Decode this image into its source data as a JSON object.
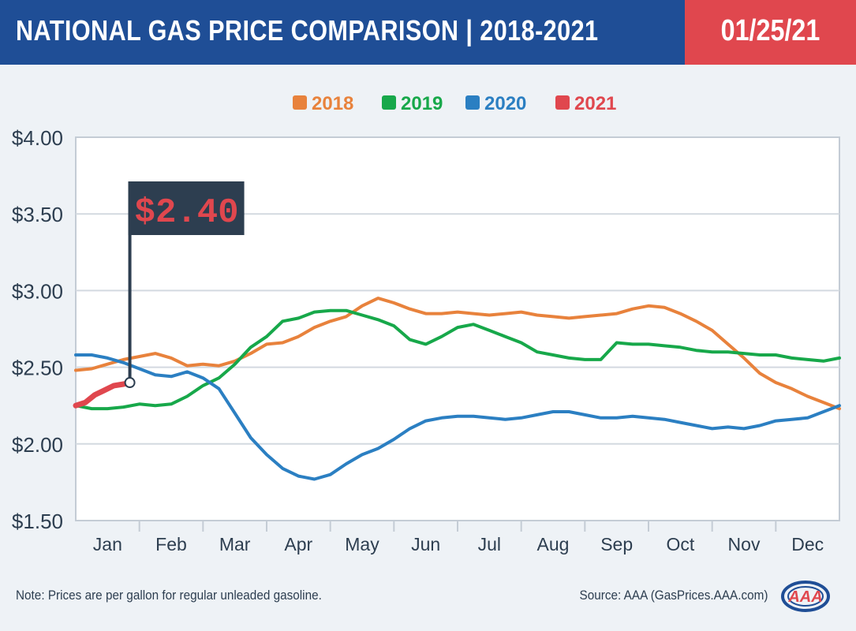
{
  "header": {
    "title": "NATIONAL GAS PRICE COMPARISON | 2018-2021",
    "date": "01/25/21"
  },
  "footer": {
    "note": "Note: Prices are per gallon for regular unleaded gasoline.",
    "source": "Source: AAA (GasPrices.AAA.com)",
    "logo_text": "AAA"
  },
  "colors": {
    "title_bg": "#1f4e96",
    "date_bg": "#e0474e",
    "2018": "#e8823c",
    "2019": "#17a84a",
    "2020": "#2b7fc2",
    "2021": "#e0474e",
    "flag_bg": "#2d3e50",
    "flag_text": "#e0474e"
  },
  "chart_data": {
    "type": "line",
    "title": "NATIONAL GAS PRICE COMPARISON | 2018-2021",
    "xlabel": "",
    "ylabel": "",
    "categories": [
      "Jan",
      "Feb",
      "Mar",
      "Apr",
      "May",
      "Jun",
      "Jul",
      "Aug",
      "Sep",
      "Oct",
      "Nov",
      "Dec"
    ],
    "x_range": [
      0,
      12
    ],
    "ylim": [
      1.5,
      4.0
    ],
    "yticks": [
      "$4.00",
      "$3.50",
      "$3.00",
      "$2.50",
      "$2.00",
      "$1.50"
    ],
    "ytick_values": [
      4.0,
      3.5,
      3.0,
      2.5,
      2.0,
      1.5
    ],
    "grid": true,
    "legend_position": "top-center",
    "annotation": {
      "label": "$2.40",
      "x": 0.85,
      "y": 2.4,
      "series": "2021"
    },
    "series": [
      {
        "name": "2018",
        "color": "#e8823c",
        "x": [
          0,
          0.25,
          0.5,
          0.75,
          1,
          1.25,
          1.5,
          1.75,
          2,
          2.25,
          2.5,
          2.75,
          3,
          3.25,
          3.5,
          3.75,
          4,
          4.25,
          4.5,
          4.75,
          5,
          5.25,
          5.5,
          5.75,
          6,
          6.25,
          6.5,
          6.75,
          7,
          7.25,
          7.5,
          7.75,
          8,
          8.25,
          8.5,
          8.75,
          9,
          9.25,
          9.5,
          9.75,
          10,
          10.25,
          10.5,
          10.75,
          11,
          11.25,
          11.5,
          11.75,
          12
        ],
        "y": [
          2.48,
          2.49,
          2.52,
          2.55,
          2.57,
          2.59,
          2.56,
          2.51,
          2.52,
          2.51,
          2.54,
          2.59,
          2.65,
          2.66,
          2.7,
          2.76,
          2.8,
          2.83,
          2.9,
          2.95,
          2.92,
          2.88,
          2.85,
          2.85,
          2.86,
          2.85,
          2.84,
          2.85,
          2.86,
          2.84,
          2.83,
          2.82,
          2.83,
          2.84,
          2.85,
          2.88,
          2.9,
          2.89,
          2.85,
          2.8,
          2.74,
          2.65,
          2.56,
          2.46,
          2.4,
          2.36,
          2.31,
          2.27,
          2.23
        ]
      },
      {
        "name": "2019",
        "color": "#17a84a",
        "x": [
          0,
          0.25,
          0.5,
          0.75,
          1,
          1.25,
          1.5,
          1.75,
          2,
          2.25,
          2.5,
          2.75,
          3,
          3.25,
          3.5,
          3.75,
          4,
          4.25,
          4.5,
          4.75,
          5,
          5.25,
          5.5,
          5.75,
          6,
          6.25,
          6.5,
          6.75,
          7,
          7.25,
          7.5,
          7.75,
          8,
          8.25,
          8.5,
          8.75,
          9,
          9.25,
          9.5,
          9.75,
          10,
          10.25,
          10.5,
          10.75,
          11,
          11.25,
          11.5,
          11.75,
          12
        ],
        "y": [
          2.25,
          2.23,
          2.23,
          2.24,
          2.26,
          2.25,
          2.26,
          2.31,
          2.38,
          2.43,
          2.52,
          2.63,
          2.7,
          2.8,
          2.82,
          2.86,
          2.87,
          2.87,
          2.84,
          2.81,
          2.77,
          2.68,
          2.65,
          2.7,
          2.76,
          2.78,
          2.74,
          2.7,
          2.66,
          2.6,
          2.58,
          2.56,
          2.55,
          2.55,
          2.66,
          2.65,
          2.65,
          2.64,
          2.63,
          2.61,
          2.6,
          2.6,
          2.59,
          2.58,
          2.58,
          2.56,
          2.55,
          2.54,
          2.56
        ]
      },
      {
        "name": "2020",
        "color": "#2b7fc2",
        "x": [
          0,
          0.25,
          0.5,
          0.75,
          1,
          1.25,
          1.5,
          1.75,
          2,
          2.25,
          2.5,
          2.75,
          3,
          3.25,
          3.5,
          3.75,
          4,
          4.25,
          4.5,
          4.75,
          5,
          5.25,
          5.5,
          5.75,
          6,
          6.25,
          6.5,
          6.75,
          7,
          7.25,
          7.5,
          7.75,
          8,
          8.25,
          8.5,
          8.75,
          9,
          9.25,
          9.5,
          9.75,
          10,
          10.25,
          10.5,
          10.75,
          11,
          11.25,
          11.5,
          11.75,
          12
        ],
        "y": [
          2.58,
          2.58,
          2.56,
          2.53,
          2.49,
          2.45,
          2.44,
          2.47,
          2.43,
          2.36,
          2.2,
          2.04,
          1.93,
          1.84,
          1.79,
          1.77,
          1.8,
          1.87,
          1.93,
          1.97,
          2.03,
          2.1,
          2.15,
          2.17,
          2.18,
          2.18,
          2.17,
          2.16,
          2.17,
          2.19,
          2.21,
          2.21,
          2.19,
          2.17,
          2.17,
          2.18,
          2.17,
          2.16,
          2.14,
          2.12,
          2.1,
          2.11,
          2.1,
          2.12,
          2.15,
          2.16,
          2.17,
          2.21,
          2.25
        ]
      },
      {
        "name": "2021",
        "color": "#e0474e",
        "x": [
          0,
          0.15,
          0.3,
          0.45,
          0.6,
          0.75,
          0.85
        ],
        "y": [
          2.25,
          2.27,
          2.32,
          2.35,
          2.38,
          2.39,
          2.4
        ]
      }
    ]
  }
}
